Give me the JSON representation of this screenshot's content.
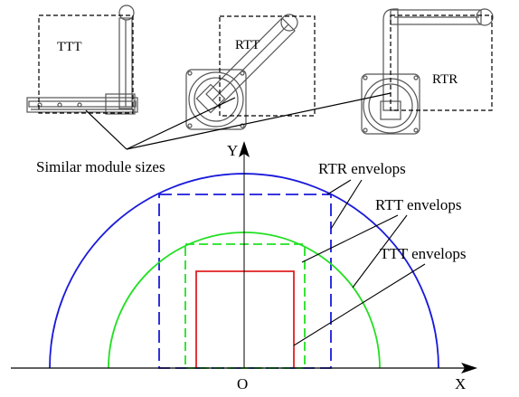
{
  "labels": {
    "ttt": "TTT",
    "rtt": "RTT",
    "rtr": "RTR",
    "similar_sizes": "Similar module sizes",
    "axis_y": "Y",
    "axis_x": "X",
    "origin": "O",
    "rtr_envelops": "RTR envelops",
    "rtt_envelops": "RTT envelops",
    "ttt_envelops": "TTT envelops"
  },
  "colors": {
    "rtr": "#1a1adc",
    "rtt": "#22e022",
    "ttt": "#e02020",
    "line": "#000000",
    "mechanism": "#555555"
  }
}
